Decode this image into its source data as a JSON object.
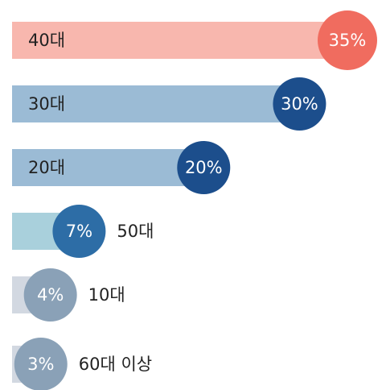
{
  "chart_data": {
    "type": "bar",
    "orientation": "horizontal",
    "categories": [
      "40대",
      "30대",
      "20대",
      "50대",
      "10대",
      "60대 이상"
    ],
    "values": [
      35,
      30,
      20,
      7,
      4,
      3
    ],
    "value_labels": [
      "35%",
      "30%",
      "20%",
      "7%",
      "4%",
      "3%"
    ],
    "bar_colors": [
      "#f8b7ae",
      "#9bbbd5",
      "#9bbbd5",
      "#a9d0dc",
      "#d2d8e1",
      "#d2d8e1"
    ],
    "circle_colors": [
      "#f06c5f",
      "#1c4e8c",
      "#1c4e8c",
      "#2d6da6",
      "#8aa1b7",
      "#8aa1b7"
    ]
  }
}
